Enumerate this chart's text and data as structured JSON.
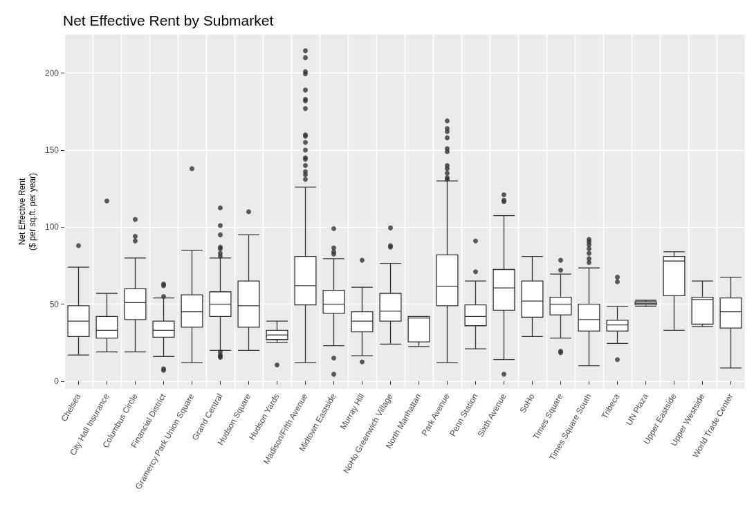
{
  "chart_data": {
    "type": "box",
    "title": "Net Effective Rent by Submarket",
    "ylabel": "Net Effective Rent\n($ per sq.ft. per year)",
    "categories": [
      "Chelsea",
      "City Hall Insurance",
      "Columbus Circle",
      "Financial District",
      "Gramercy Park Union Square",
      "Grand Central",
      "Hudson Square",
      "Hudson Yards",
      "Madison/Fifth Avenue",
      "Midtown Eastside",
      "Murray Hill",
      "NoHo Greenwich Village",
      "North Manhattan",
      "Park Avenue",
      "Penn Station",
      "Sixth Avenue",
      "SoHo",
      "Times Square",
      "Times Square South",
      "Tribeca",
      "UN Plaza",
      "Upper Eastside",
      "Upper Westside",
      "World Trade Center"
    ],
    "boxes": [
      {
        "low": 17,
        "q1": 29,
        "median": 39,
        "q3": 49,
        "high": 74,
        "outliers": [
          88
        ]
      },
      {
        "low": 19,
        "q1": 28,
        "median": 33,
        "q3": 42,
        "high": 57,
        "outliers": [
          117
        ]
      },
      {
        "low": 19,
        "q1": 40,
        "median": 51,
        "q3": 60,
        "high": 80,
        "outliers": [
          105,
          94,
          91
        ]
      },
      {
        "low": 16,
        "q1": 28.5,
        "median": 33,
        "q3": 39,
        "high": 54,
        "outliers": [
          63,
          62,
          55,
          8,
          7
        ]
      },
      {
        "low": 12,
        "q1": 35,
        "median": 45,
        "q3": 56,
        "high": 85,
        "outliers": [
          138
        ]
      },
      {
        "low": 20,
        "q1": 42,
        "median": 50,
        "q3": 58,
        "high": 80,
        "outliers": [
          112.5,
          101,
          95,
          87,
          86,
          83,
          81,
          19,
          17,
          16,
          15.5
        ]
      },
      {
        "low": 20,
        "q1": 35,
        "median": 49,
        "q3": 65,
        "high": 95,
        "outliers": [
          110
        ]
      },
      {
        "low": 25,
        "q1": 27,
        "median": 30,
        "q3": 33,
        "high": 39,
        "outliers": [
          10.5
        ]
      },
      {
        "low": 12,
        "q1": 49.5,
        "median": 62,
        "q3": 81,
        "high": 126,
        "outliers": [
          214.5,
          210,
          201,
          199.5,
          189,
          183,
          182,
          177,
          160,
          159,
          155,
          150,
          145,
          144,
          140,
          136,
          134,
          131
        ]
      },
      {
        "low": 23,
        "q1": 44,
        "median": 50,
        "q3": 59,
        "high": 79.5,
        "outliers": [
          99,
          86.5,
          84,
          82.5,
          15,
          4.5
        ]
      },
      {
        "low": 16.5,
        "q1": 32,
        "median": 39,
        "q3": 45,
        "high": 61,
        "outliers": [
          78.5,
          12.5
        ]
      },
      {
        "low": 24,
        "q1": 39,
        "median": 45.5,
        "q3": 57,
        "high": 76.5,
        "outliers": [
          99.5,
          88,
          87
        ]
      },
      {
        "low": 22.5,
        "q1": 25.5,
        "median": 41,
        "q3": 42,
        "high": 42
      },
      {
        "low": 12,
        "q1": 49,
        "median": 61.5,
        "q3": 82,
        "high": 130,
        "outliers": [
          169,
          164,
          162,
          158,
          151,
          149,
          140,
          138,
          135,
          132,
          131
        ]
      },
      {
        "low": 21,
        "q1": 36,
        "median": 42,
        "q3": 49.5,
        "high": 65,
        "outliers": [
          91,
          71
        ]
      },
      {
        "low": 14,
        "q1": 46,
        "median": 60.5,
        "q3": 72.5,
        "high": 107.5,
        "outliers": [
          121,
          117.5,
          116.5,
          4.5
        ]
      },
      {
        "low": 29,
        "q1": 41.5,
        "median": 52,
        "q3": 65,
        "high": 81
      },
      {
        "low": 28,
        "q1": 43,
        "median": 50,
        "q3": 54.5,
        "high": 69.5,
        "outliers": [
          78.5,
          72,
          19.5,
          18.5
        ]
      },
      {
        "low": 10,
        "q1": 32.5,
        "median": 40,
        "q3": 50,
        "high": 73.5,
        "outliers": [
          92,
          90.5,
          88.5,
          86,
          83,
          79.5,
          77
        ]
      },
      {
        "low": 24.5,
        "q1": 32.5,
        "median": 36.5,
        "q3": 39.5,
        "high": 48.5,
        "outliers": [
          67.5,
          64.5,
          14
        ]
      },
      {
        "low": 48.5,
        "q1": 49.5,
        "median": 50.5,
        "q3": 51.5,
        "high": 52.5
      },
      {
        "low": 33,
        "q1": 55.5,
        "median": 78,
        "q3": 81,
        "high": 84
      },
      {
        "low": 35.5,
        "q1": 37,
        "median": 53,
        "q3": 54.5,
        "high": 65
      },
      {
        "low": 8.5,
        "q1": 34.5,
        "median": 45,
        "q3": 54,
        "high": 67.5
      }
    ],
    "ylim": [
      -5,
      225
    ],
    "yticks": [
      0,
      50,
      100,
      150,
      200
    ],
    "grid": true
  }
}
